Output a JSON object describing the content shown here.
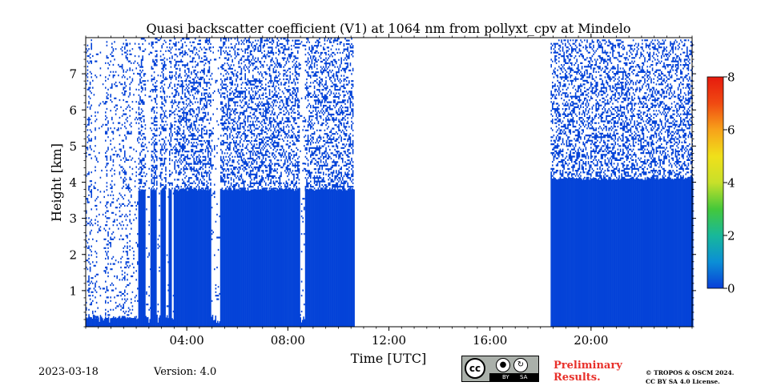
{
  "chart_data": {
    "type": "heatmap",
    "title": "Quasi backscatter coefficient (V1) at 1064 nm from pollyxt_cpv at Mindelo",
    "xlabel": "Time [UTC]",
    "ylabel": "Height [km]",
    "xlim_hours": [
      0,
      24
    ],
    "ylim_km": [
      0,
      8
    ],
    "x_ticks": [
      {
        "hour": 4,
        "label": "04:00"
      },
      {
        "hour": 8,
        "label": "08:00"
      },
      {
        "hour": 12,
        "label": "12:00"
      },
      {
        "hour": 16,
        "label": "16:00"
      },
      {
        "hour": 20,
        "label": "20:00"
      }
    ],
    "y_ticks": [
      {
        "value": 1,
        "label": "1"
      },
      {
        "value": 2,
        "label": "2"
      },
      {
        "value": 3,
        "label": "3"
      },
      {
        "value": 4,
        "label": "4"
      },
      {
        "value": 5,
        "label": "5"
      },
      {
        "value": 6,
        "label": "6"
      },
      {
        "value": 7,
        "label": "7"
      }
    ],
    "colorbar": {
      "min": 0,
      "max": 8,
      "ticks": [
        {
          "value": 0,
          "label": "0"
        },
        {
          "value": 2,
          "label": "2"
        },
        {
          "value": 4,
          "label": "4"
        },
        {
          "value": 6,
          "label": "6"
        },
        {
          "value": 8,
          "label": "8"
        }
      ],
      "colors": [
        "#0a3fd8",
        "#0b8fd6",
        "#18b89a",
        "#44c83a",
        "#c8e02a",
        "#f0e01a",
        "#f7a21a",
        "#f04a12",
        "#e61a0e"
      ]
    },
    "fill_color": "#0443d8",
    "data_regions": [
      {
        "start_hour": 0.0,
        "end_hour": 10.6
      },
      {
        "start_hour": 18.4,
        "end_hour": 24.0
      }
    ],
    "no_data_gap_hours": [
      10.6,
      18.4
    ],
    "boundary_layer_top_km": [
      {
        "from_hour": 0.0,
        "to_hour": 2.05,
        "height_km": 0.25
      },
      {
        "from_hour": 2.05,
        "to_hour": 10.6,
        "height_km": 3.8
      },
      {
        "from_hour": 18.4,
        "to_hour": 24.0,
        "height_km": 4.1
      }
    ],
    "clear_columns_hours": [
      {
        "from": 0.25,
        "to": 0.35
      },
      {
        "from": 0.5,
        "to": 0.75
      },
      {
        "from": 0.9,
        "to": 0.93
      },
      {
        "from": 2.35,
        "to": 2.55
      },
      {
        "from": 2.8,
        "to": 2.93
      },
      {
        "from": 3.15,
        "to": 3.28
      },
      {
        "from": 3.4,
        "to": 3.45
      },
      {
        "from": 4.95,
        "to": 5.3
      },
      {
        "from": 8.45,
        "to": 8.65
      }
    ]
  },
  "footer": {
    "date": "2023-03-18",
    "version": "Version: 4.0",
    "license_badge": {
      "cc": "cc",
      "by": "BY",
      "sa": "SA"
    },
    "preliminary": "Preliminary Results.",
    "copyright_line1": "© TROPOS & OSCM 2024.",
    "copyright_line2": "CC BY SA 4.0 License."
  }
}
